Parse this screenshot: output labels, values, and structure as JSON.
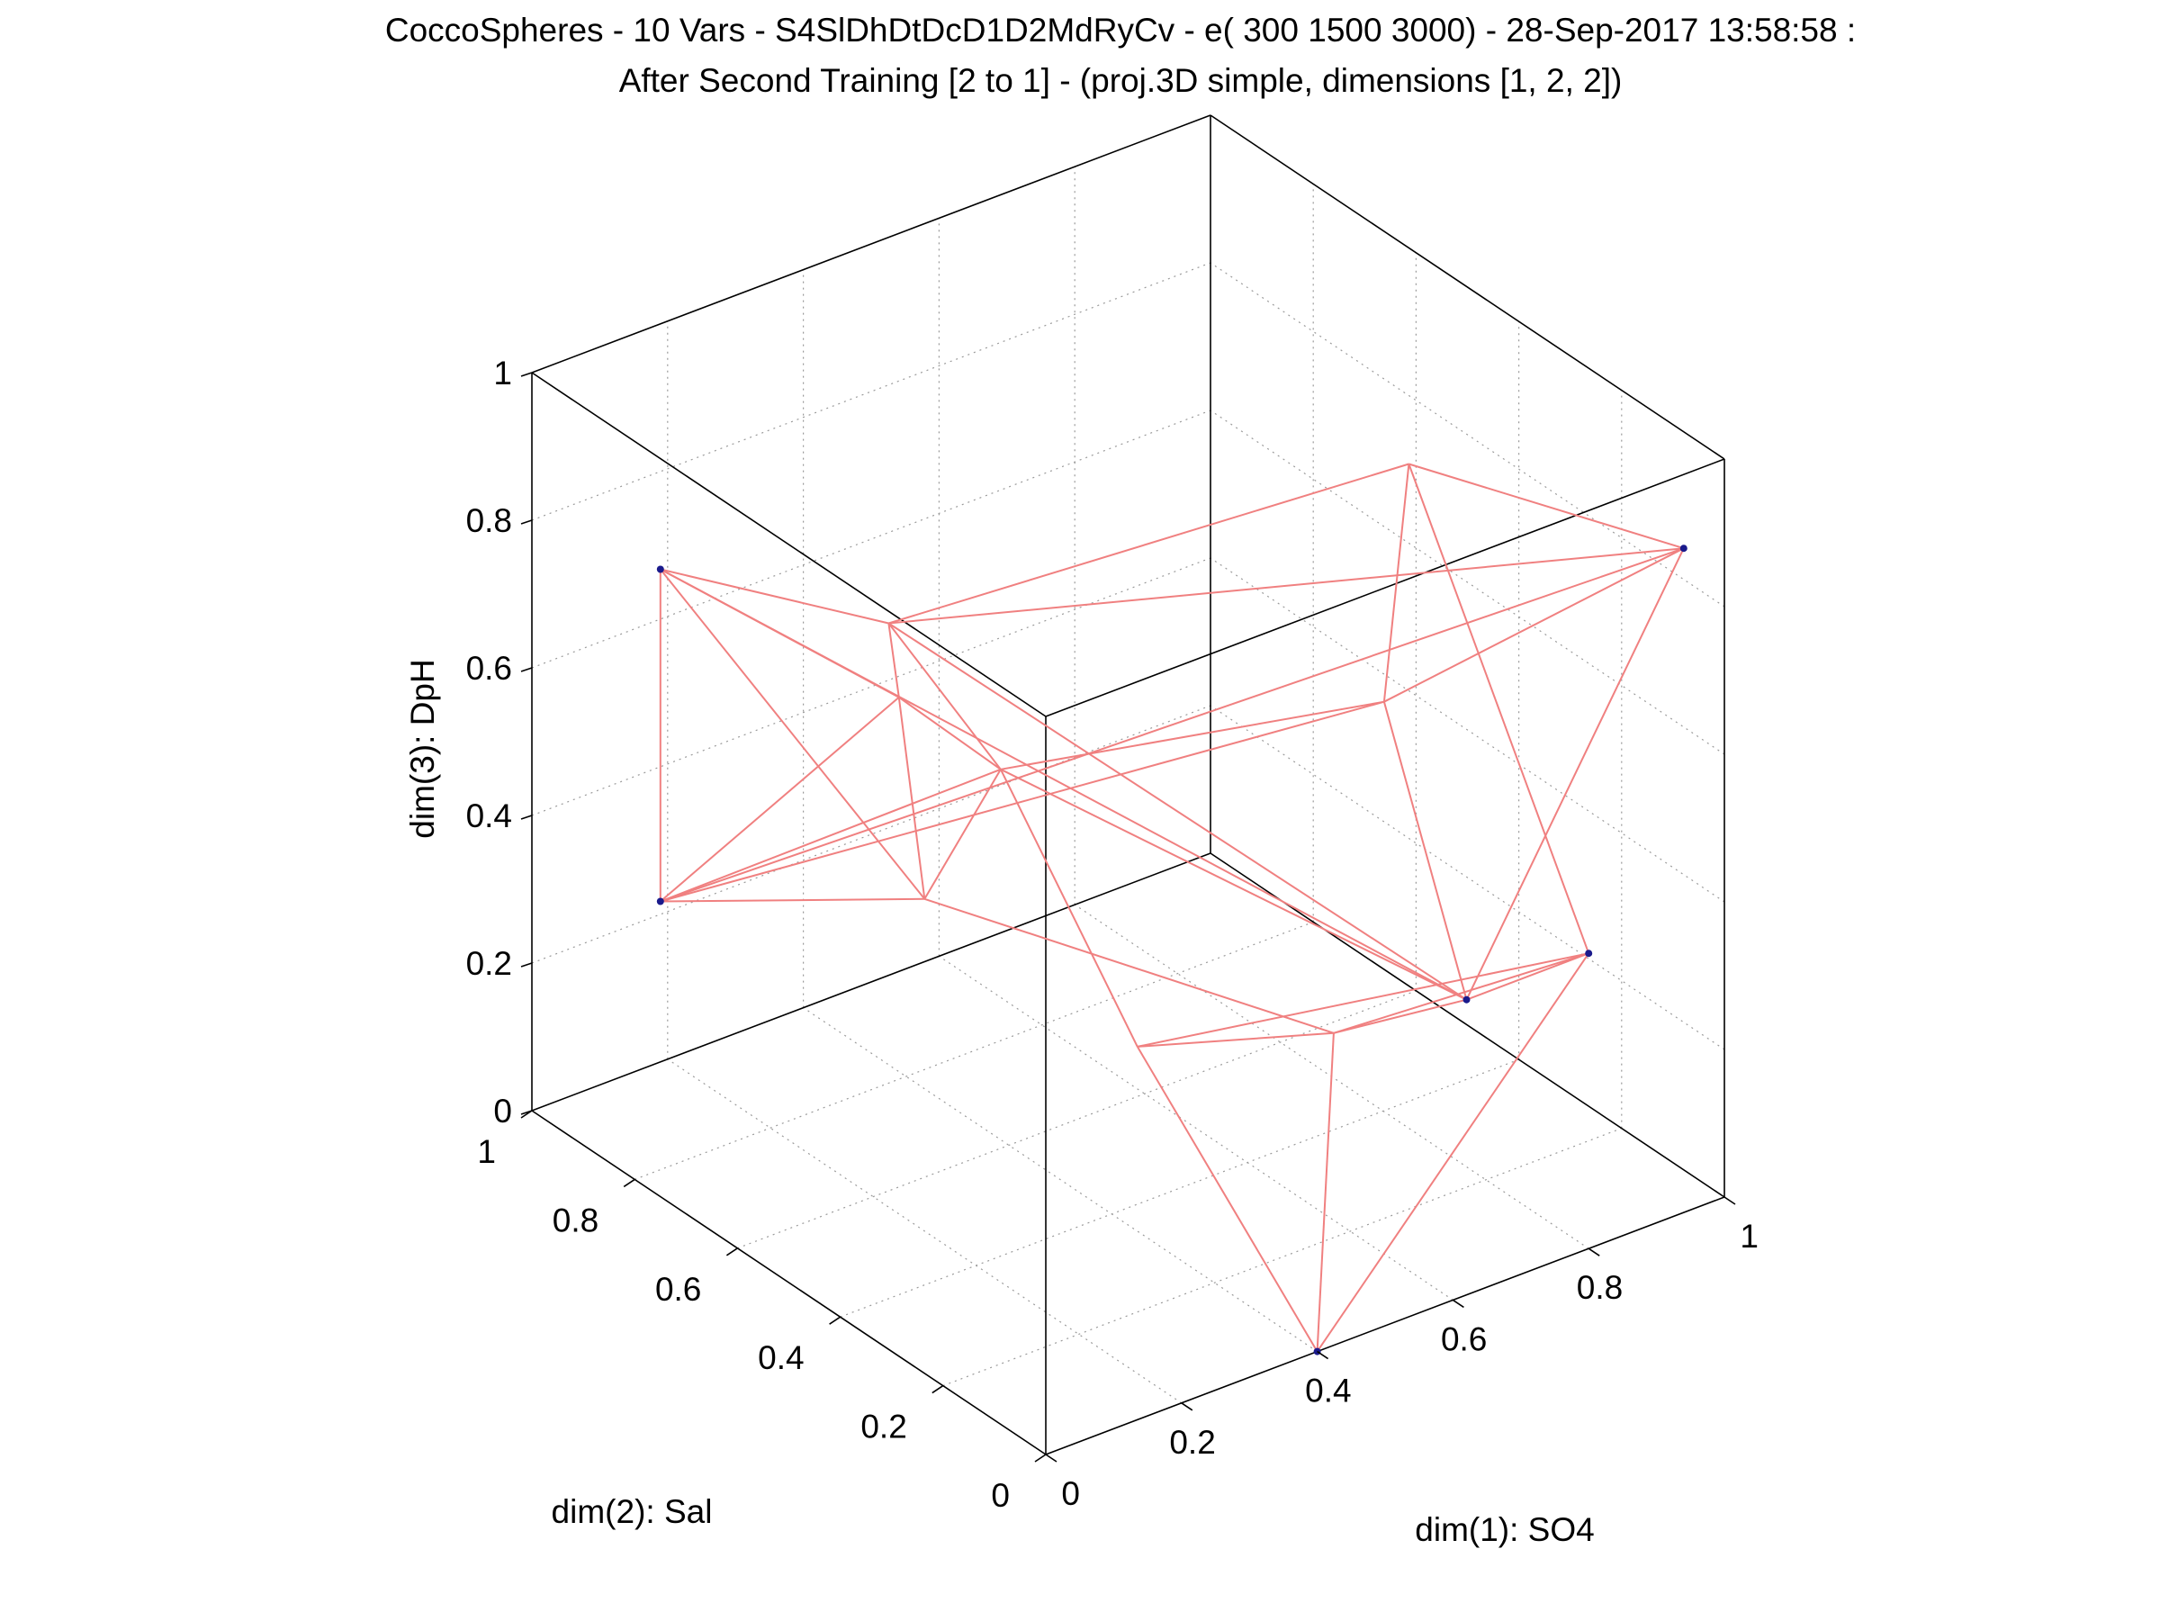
{
  "title": {
    "line1": "CoccoSpheres - 10 Vars - S4SlDhDtDcD1D2MdRyCv - e( 300 1500 3000) - 28-Sep-2017 13:58:58 :",
    "line2": "After Second Training [2 to 1] - (proj.3D simple, dimensions [1, 2, 2])"
  },
  "chart_data": {
    "type": "scatter",
    "projection": "3D",
    "grid": true,
    "xlabel": "dim(1): SO4",
    "ylabel": "dim(2): Sal",
    "zlabel": "dim(3): DpH",
    "xlim": [
      0,
      1
    ],
    "ylim": [
      0,
      1
    ],
    "zlim": [
      0,
      1
    ],
    "x_ticks": [
      "0",
      "0.2",
      "0.4",
      "0.6",
      "0.8",
      "1"
    ],
    "y_ticks": [
      "0",
      "0.2",
      "0.4",
      "0.6",
      "0.8",
      "1"
    ],
    "z_ticks": [
      "0",
      "0.2",
      "0.4",
      "0.6",
      "0.8",
      "1"
    ],
    "neurons": [
      {
        "x": 0.0,
        "y": 0.75,
        "z": 0.85
      },
      {
        "x": 0.0,
        "y": 0.75,
        "z": 0.4
      },
      {
        "x": 0.94,
        "y": 0.0,
        "z": 0.9
      },
      {
        "x": 0.62,
        "y": 0.0,
        "z": 0.4
      },
      {
        "x": 0.8,
        "y": 0.0,
        "z": 0.4
      },
      {
        "x": 0.4,
        "y": 0.0,
        "z": 0.0
      }
    ],
    "mesh_points": [
      {
        "x": 0.0,
        "y": 0.75,
        "z": 0.85
      },
      {
        "x": 0.0,
        "y": 0.75,
        "z": 0.4
      },
      {
        "x": 0.94,
        "y": 0.0,
        "z": 0.9
      },
      {
        "x": 0.62,
        "y": 0.0,
        "z": 0.4
      },
      {
        "x": 0.8,
        "y": 0.0,
        "z": 0.4
      },
      {
        "x": 0.4,
        "y": 0.0,
        "z": 0.0
      },
      {
        "x": 0.45,
        "y": 0.9,
        "z": 0.55
      },
      {
        "x": 0.8,
        "y": 0.35,
        "z": 0.9
      },
      {
        "x": 0.4,
        "y": 0.35,
        "z": 0.25
      },
      {
        "x": 0.2,
        "y": 0.55,
        "z": 0.7
      },
      {
        "x": 0.65,
        "y": 0.2,
        "z": 0.7
      },
      {
        "x": 0.5,
        "y": 0.1,
        "z": 0.35
      },
      {
        "x": 0.2,
        "y": 0.5,
        "z": 0.45
      },
      {
        "x": 0.35,
        "y": 0.55,
        "z": 0.55
      }
    ],
    "mesh_edges": [
      [
        0,
        1
      ],
      [
        0,
        9
      ],
      [
        0,
        6
      ],
      [
        0,
        3
      ],
      [
        0,
        12
      ],
      [
        1,
        9
      ],
      [
        1,
        12
      ],
      [
        1,
        2
      ],
      [
        1,
        10
      ],
      [
        1,
        13
      ],
      [
        2,
        7
      ],
      [
        2,
        10
      ],
      [
        2,
        6
      ],
      [
        2,
        3
      ],
      [
        3,
        4
      ],
      [
        3,
        11
      ],
      [
        3,
        13
      ],
      [
        3,
        10
      ],
      [
        3,
        6
      ],
      [
        4,
        5
      ],
      [
        4,
        11
      ],
      [
        4,
        8
      ],
      [
        4,
        7
      ],
      [
        5,
        8
      ],
      [
        5,
        11
      ],
      [
        6,
        7
      ],
      [
        6,
        13
      ],
      [
        6,
        9
      ],
      [
        7,
        10
      ],
      [
        8,
        11
      ],
      [
        8,
        13
      ],
      [
        9,
        12
      ],
      [
        9,
        13
      ],
      [
        10,
        13
      ],
      [
        11,
        12
      ],
      [
        12,
        13
      ]
    ]
  }
}
